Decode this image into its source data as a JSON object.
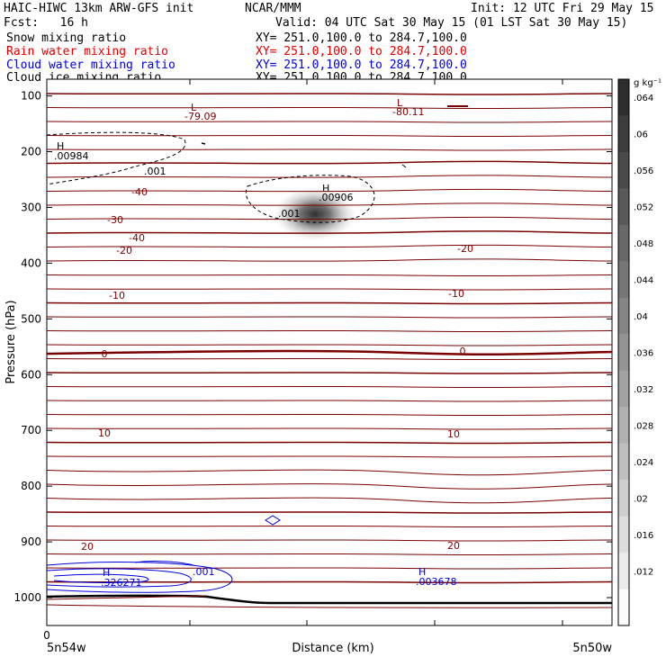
{
  "header": {
    "title_left": "HAIC-HIWC 13km ARW-GFS init",
    "org": "NCAR/MMM",
    "init": "Init: 12 UTC Fri 29 May 15",
    "fcst": "Fcst:   16 h",
    "valid": "Valid: 04 UTC Sat 30 May 15 (01 LST Sat 30 May 15)",
    "fields": [
      {
        "name": "Snow mixing ratio",
        "xy": "XY= 251.0,100.0 to 284.7,100.0",
        "color": "black"
      },
      {
        "name": "Rain water mixing ratio",
        "xy": "XY= 251.0,100.0 to 284.7,100.0",
        "color": "red"
      },
      {
        "name": "Cloud water mixing ratio",
        "xy": "XY= 251.0,100.0 to 284.7,100.0",
        "color": "blue"
      },
      {
        "name": "Cloud ice mixing ratio",
        "xy": "XY= 251.0,100.0 to 284.7,100.0",
        "color": "black"
      }
    ]
  },
  "chart_data": {
    "type": "cross-section",
    "ylabel": "Pressure (hPa)",
    "xlabel": "Distance (km)",
    "y_ticks": [
      100,
      200,
      300,
      400,
      500,
      600,
      700,
      800,
      900,
      1000
    ],
    "ylim": [
      70,
      1050
    ],
    "x_tick_label": "0",
    "x_left_label": "5n54w",
    "x_right_label": "5n50w",
    "colorbar_unit": "g kg⁻¹",
    "colorbar_ticks": [
      ".064",
      ".06",
      ".056",
      ".052",
      ".048",
      ".044",
      ".04",
      ".036",
      ".032",
      ".028",
      ".024",
      ".02",
      ".016",
      ".012"
    ],
    "temperature_labels": [
      {
        "text": "-40",
        "p": 265
      },
      {
        "text": "-30",
        "p": 312
      },
      {
        "text": "-20",
        "p": 362
      },
      {
        "text": "-20",
        "p": 362
      },
      {
        "text": "-10",
        "p": 430
      },
      {
        "text": "-10",
        "p": 430
      },
      {
        "text": "0",
        "p": 552
      },
      {
        "text": "0",
        "p": 550
      },
      {
        "text": "10",
        "p": 698
      },
      {
        "text": "10",
        "p": 700
      },
      {
        "text": "20",
        "p": 890
      },
      {
        "text": "20",
        "p": 888
      }
    ],
    "extrema": [
      {
        "letter": "L",
        "value": "-79.09",
        "color": "red"
      },
      {
        "letter": "L",
        "value": "-80.11",
        "color": "red"
      },
      {
        "letter": "H",
        "value": ".00984",
        "color": "black"
      },
      {
        "letter": "H",
        "value": ".00906",
        "color": "black"
      },
      {
        "letter": "H",
        "value": ".326271",
        "color": "blue"
      },
      {
        "letter": "H",
        "value": ".003678",
        "color": "blue"
      }
    ],
    "contour_labels": [
      {
        "text": ".001",
        "color": "black"
      },
      {
        "text": ".001",
        "color": "black"
      },
      {
        "text": ".001",
        "color": "blue"
      }
    ]
  }
}
